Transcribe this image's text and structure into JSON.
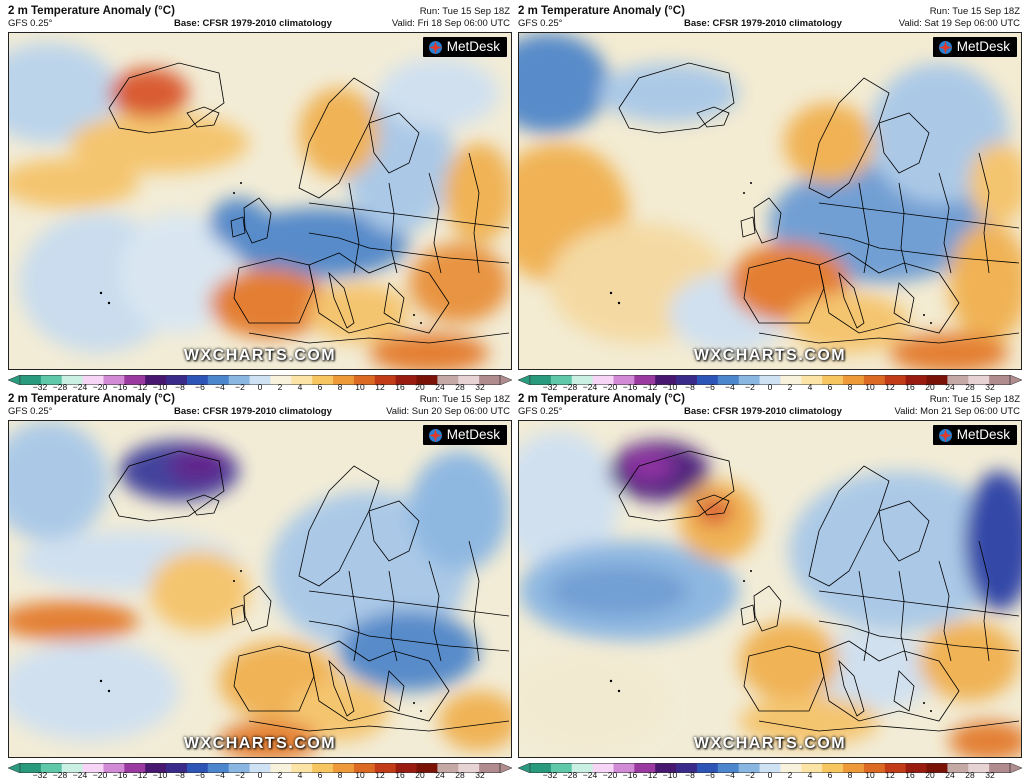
{
  "panels": [
    {
      "title": "2 m Temperature Anomaly (°C)",
      "model": "GFS 0.25°",
      "base_label": "Base:",
      "base_value": "CFSR 1979-2010 climatology",
      "run": "Run: Tue 15 Sep 18Z",
      "valid": "Valid: Fri 18 Sep 06:00 UTC",
      "logo": "MetDesk",
      "watermark": "WXCHARTS.COM"
    },
    {
      "title": "2 m Temperature Anomaly (°C)",
      "model": "GFS 0.25°",
      "base_label": "Base:",
      "base_value": "CFSR 1979-2010 climatology",
      "run": "Run: Tue 15 Sep 18Z",
      "valid": "Valid: Sat 19 Sep 06:00 UTC",
      "logo": "MetDesk",
      "watermark": "WXCHARTS.COM"
    },
    {
      "title": "2 m Temperature Anomaly (°C)",
      "model": "GFS 0.25°",
      "base_label": "Base:",
      "base_value": "CFSR 1979-2010 climatology",
      "run": "Run: Tue 15 Sep 18Z",
      "valid": "Valid: Sun 20 Sep 06:00 UTC",
      "logo": "MetDesk",
      "watermark": "WXCHARTS.COM"
    },
    {
      "title": "2 m Temperature Anomaly (°C)",
      "model": "GFS 0.25°",
      "base_label": "Base:",
      "base_value": "CFSR 1979-2010 climatology",
      "run": "Run: Tue 15 Sep 18Z",
      "valid": "Valid: Mon 21 Sep 06:00 UTC",
      "logo": "MetDesk",
      "watermark": "WXCHARTS.COM"
    }
  ],
  "colorbar": {
    "ticks": [
      "−32",
      "−28",
      "−24",
      "−20",
      "−16",
      "−12",
      "−10",
      "−8",
      "−6",
      "−4",
      "−2",
      "0",
      "2",
      "4",
      "6",
      "8",
      "10",
      "12",
      "16",
      "20",
      "24",
      "28",
      "32"
    ],
    "colors": [
      "#2a9a7e",
      "#5ec8a8",
      "#c9f0e3",
      "#f6d5f6",
      "#d38ad6",
      "#9a3aa0",
      "#48176f",
      "#3a2a8a",
      "#2d55b8",
      "#4c86cd",
      "#8ab6e2",
      "#cfe2f3",
      "#f8f2dc",
      "#fbe4a6",
      "#f7c660",
      "#ee9a38",
      "#dd6a22",
      "#c23c17",
      "#9a1c10",
      "#7a1208",
      "#c4a9a6",
      "#e7d3d3",
      "#b08c8f"
    ]
  },
  "palette": {
    "ocean_neutral": "#f2ecd6",
    "warm": "#f5c36a",
    "hot": "#e3792a",
    "very_hot": "#c8461d",
    "cool": "#a8c8e8",
    "cold": "#4f86c9",
    "very_cold": "#2a4fa6",
    "extreme_cold": "#4a1f7a"
  }
}
